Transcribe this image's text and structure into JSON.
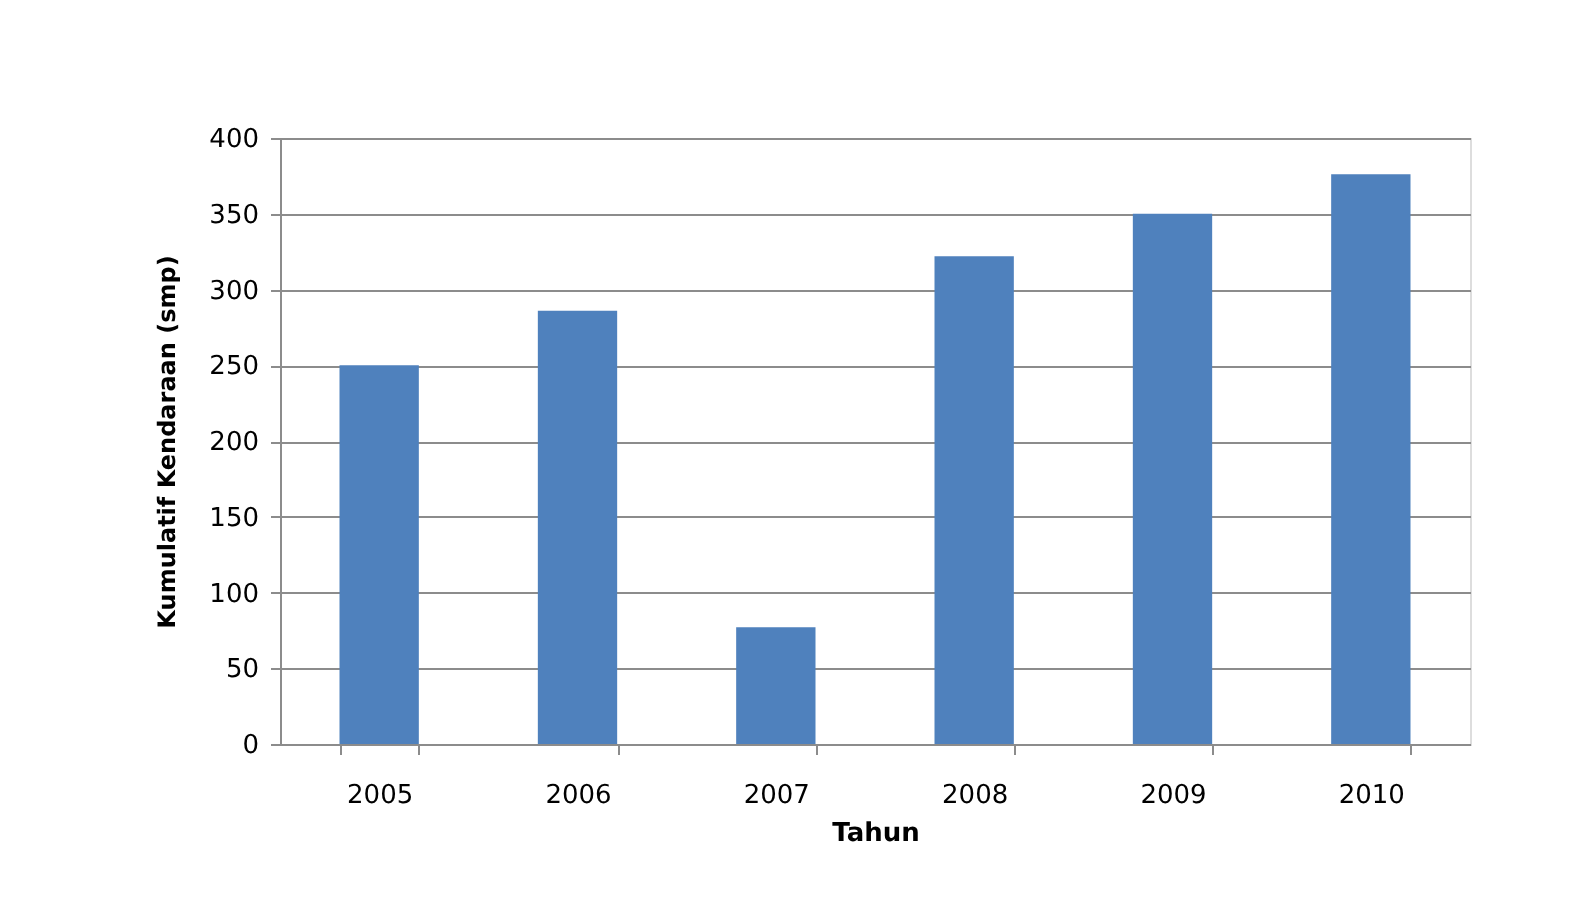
{
  "chart_data": {
    "type": "bar",
    "xlabel": "Tahun",
    "ylabel": "Kumulatif Kendaraan (smp)",
    "categories": [
      "2005",
      "2006",
      "2007",
      "2008",
      "2009",
      "2010"
    ],
    "values": [
      250,
      286,
      77,
      322,
      350,
      376
    ],
    "color": "#4f81bd",
    "ylim": [
      0,
      400
    ],
    "yticks": [
      0,
      50,
      100,
      150,
      200,
      250,
      300,
      350,
      400
    ],
    "grid": "y"
  }
}
